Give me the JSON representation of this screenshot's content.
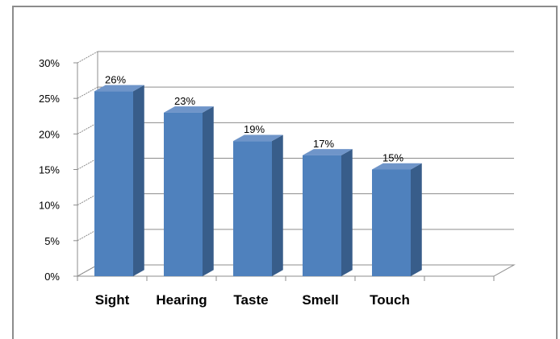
{
  "chart_data": {
    "type": "bar",
    "style": "3d-column",
    "categories": [
      "Sight",
      "Hearing",
      "Taste",
      "Smell",
      "Touch"
    ],
    "values": [
      26,
      23,
      19,
      17,
      15
    ],
    "data_labels": [
      "26%",
      "23%",
      "19%",
      "17%",
      "15%"
    ],
    "ylim": [
      0,
      30
    ],
    "yticks": [
      "0%",
      "5%",
      "10%",
      "15%",
      "20%",
      "25%",
      "30%"
    ],
    "grid": true,
    "legend": "none",
    "colors": {
      "bar_front": "#4f81bd",
      "bar_side": "#385d8a",
      "bar_top": "#6f95c9",
      "grid": "#8c8c8c",
      "frame": "#8c8c8c"
    }
  }
}
